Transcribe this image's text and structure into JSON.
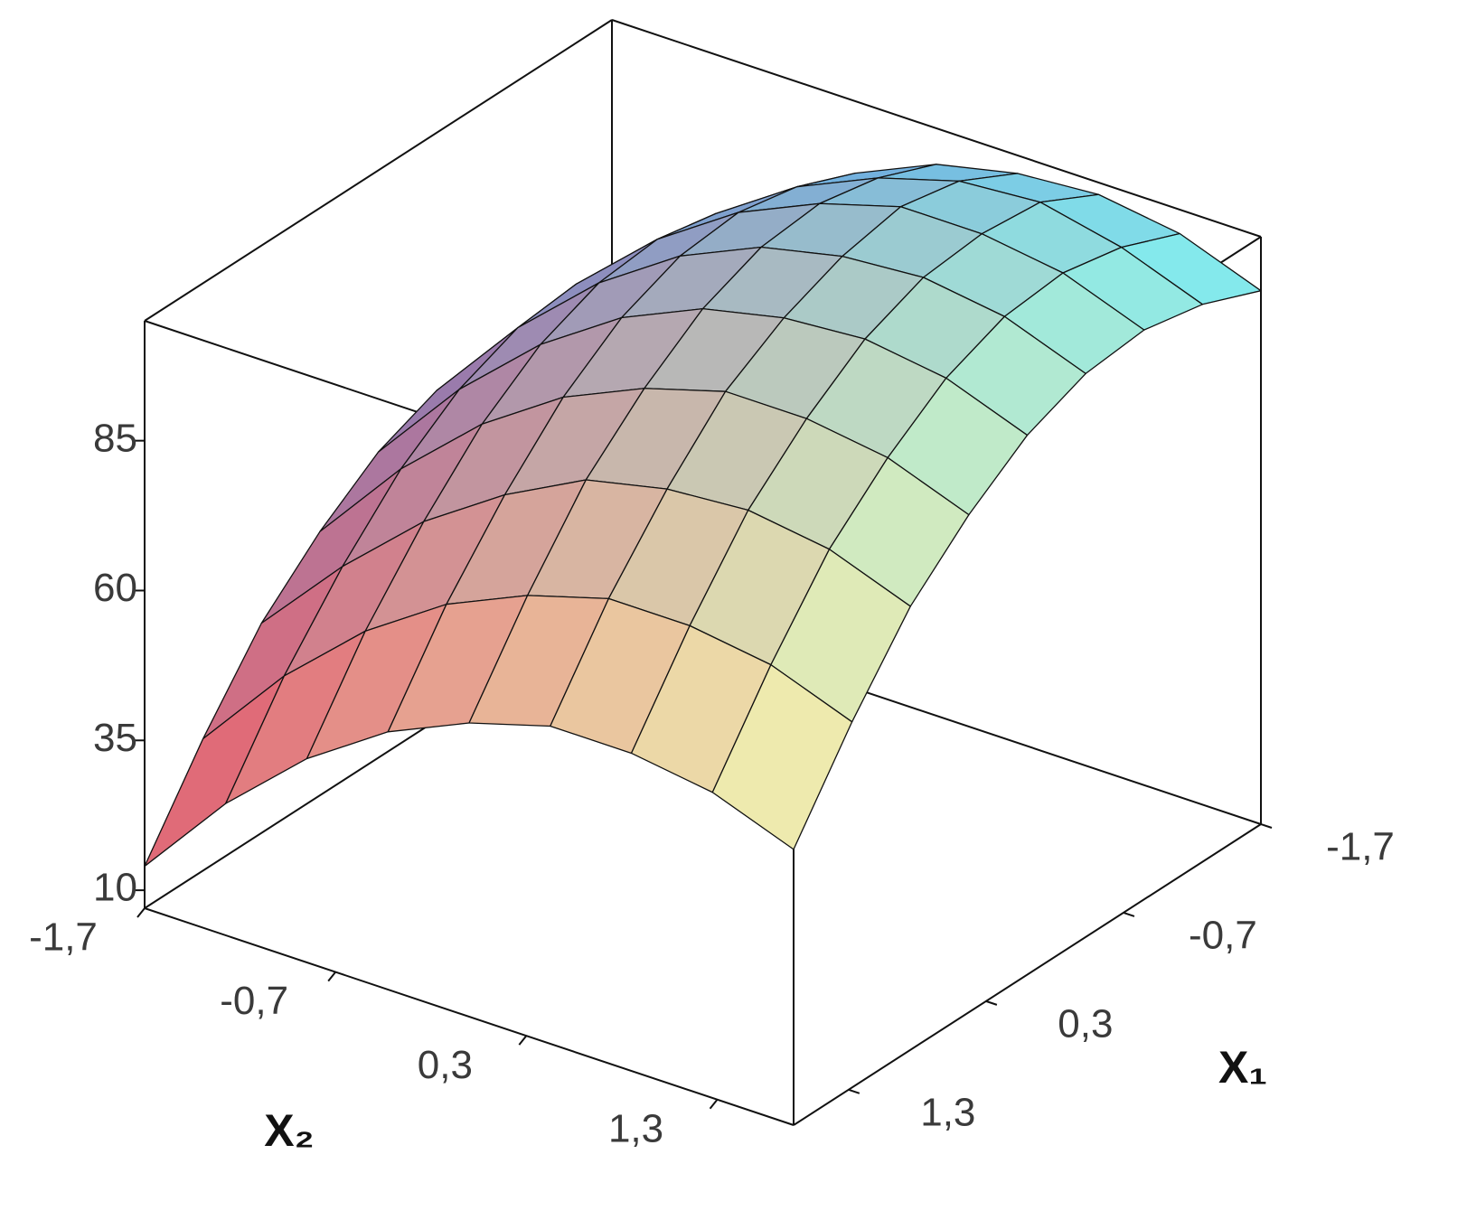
{
  "chart_data": {
    "type": "surface",
    "x1_label": "X₁",
    "x2_label": "X₂",
    "x1lim": [
      -1.7,
      1.7
    ],
    "x2lim": [
      -1.7,
      1.7
    ],
    "zlim": [
      7,
      105
    ],
    "zticks": [
      10,
      35,
      60,
      85
    ],
    "x1ticks": [
      {
        "value": -1.7,
        "label": "-1,7"
      },
      {
        "value": -0.7,
        "label": "-0,7"
      },
      {
        "value": 0.3,
        "label": "0,3"
      },
      {
        "value": 1.3,
        "label": "1,3"
      }
    ],
    "x2ticks": [
      {
        "value": -1.7,
        "label": "-1,7"
      },
      {
        "value": -0.7,
        "label": "-0,7"
      },
      {
        "value": 0.3,
        "label": "0,3"
      },
      {
        "value": 1.3,
        "label": "1,3"
      }
    ],
    "x1": [
      -1.7,
      -1.275,
      -0.85,
      -0.425,
      0,
      0.425,
      0.85,
      1.275,
      1.7
    ],
    "x2": [
      -1.7,
      -1.275,
      -0.85,
      -0.425,
      0,
      0.425,
      0.85,
      1.275,
      1.7
    ],
    "z": [
      [
        57,
        72,
        83,
        93,
        99,
        102,
        103,
        101,
        96
      ],
      [
        61,
        76,
        88,
        97,
        103,
        107,
        108,
        105,
        100
      ],
      [
        63,
        78,
        90,
        99,
        105,
        109,
        109,
        107,
        102
      ],
      [
        62,
        77,
        89,
        98,
        104,
        107,
        108,
        106,
        101
      ],
      [
        58,
        73,
        85,
        94,
        100,
        103,
        104,
        102,
        97
      ],
      [
        51,
        66,
        78,
        87,
        93,
        97,
        97,
        95,
        90
      ],
      [
        42,
        56,
        68,
        77,
        84,
        87,
        88,
        86,
        81
      ],
      [
        29,
        44,
        56,
        65,
        71,
        75,
        75,
        73,
        68
      ],
      [
        14,
        29,
        41,
        50,
        56,
        60,
        60,
        58,
        53
      ]
    ],
    "corner_colors": [
      [
        "#5b82d8",
        "#7ff0f2"
      ],
      [
        "#e8606e",
        "#f6f3ae"
      ]
    ]
  }
}
